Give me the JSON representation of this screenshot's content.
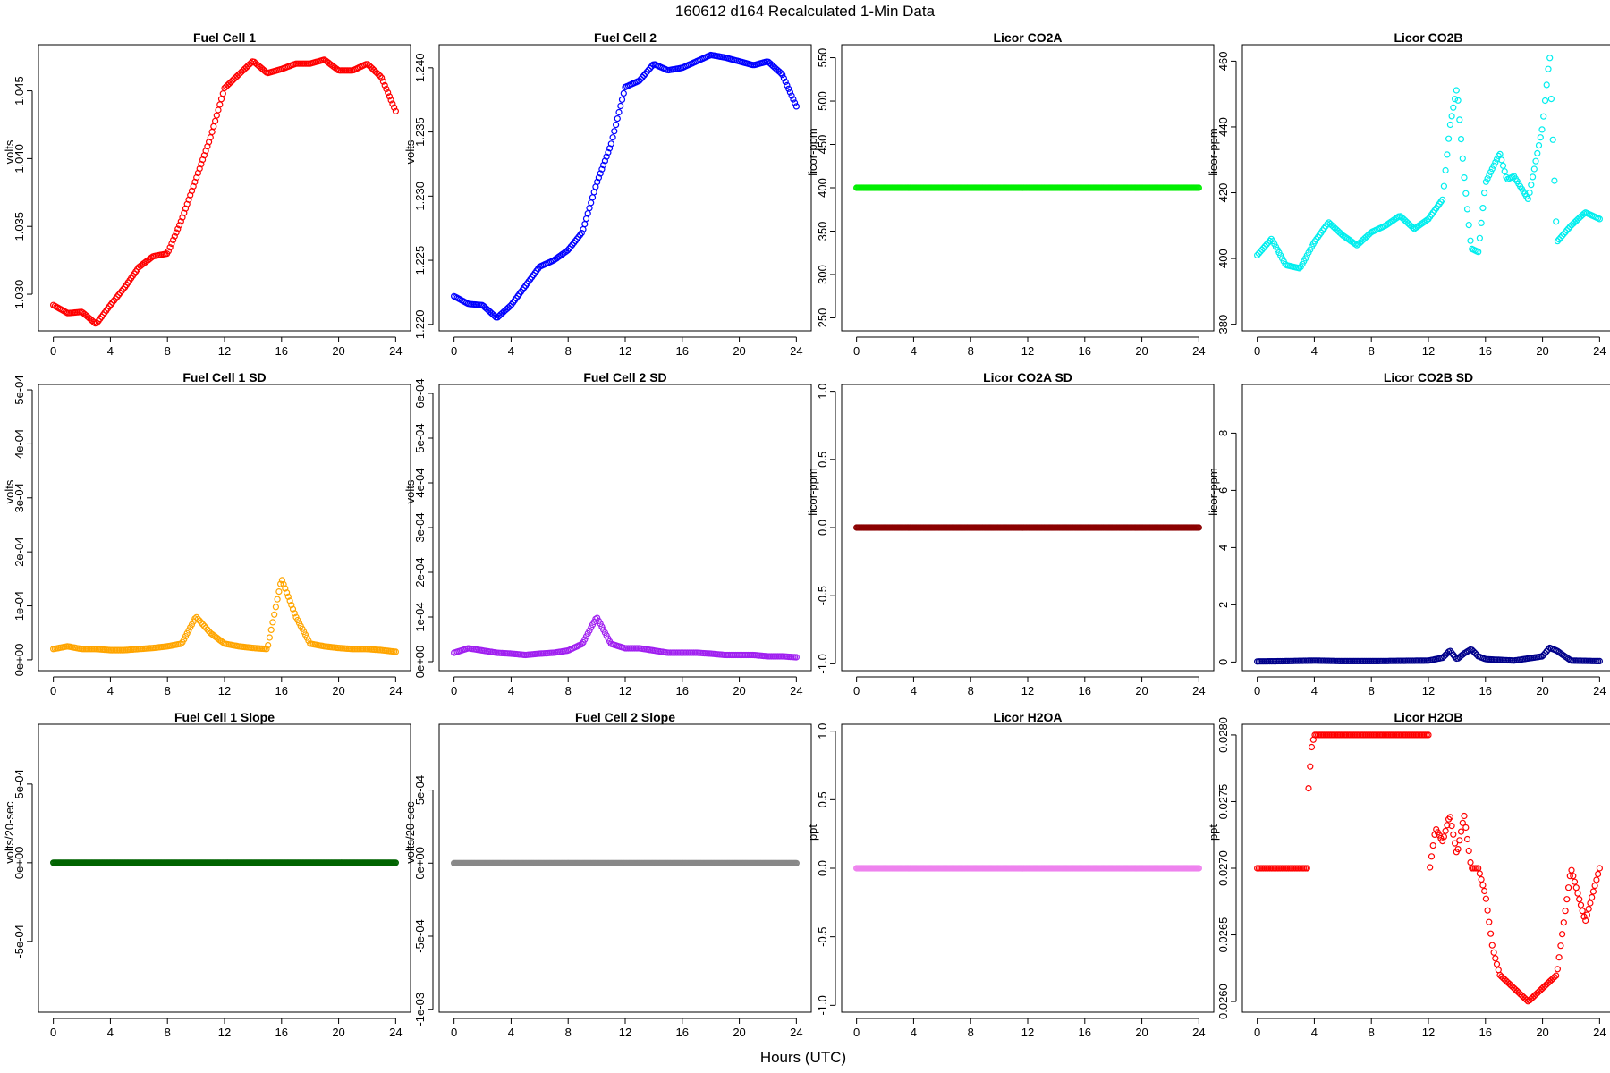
{
  "figure": {
    "title": "160612   d164   Recalculated 1-Min Data",
    "xlabel": "Hours (UTC)",
    "x_ticks": [
      "0",
      "4",
      "8",
      "12",
      "16",
      "20",
      "24"
    ]
  },
  "chart_data": [
    {
      "type": "scatter",
      "title": "Fuel Cell 1",
      "ylabel": "volts",
      "color": "#ff0000",
      "xlim": [
        0,
        24
      ],
      "ylim": [
        1.0273,
        1.0484
      ],
      "y_ticks": [
        1.03,
        1.035,
        1.04,
        1.045
      ],
      "y_tick_labels": [
        "1.030",
        "1.035",
        "1.040",
        "1.045"
      ],
      "x": [
        0,
        1,
        2,
        3,
        4,
        5,
        6,
        7,
        8,
        9,
        10,
        11,
        12,
        13,
        14,
        15,
        16,
        17,
        18,
        19,
        20,
        21,
        22,
        23,
        24
      ],
      "y": [
        1.0292,
        1.0286,
        1.0287,
        1.0278,
        1.0292,
        1.0305,
        1.032,
        1.0328,
        1.033,
        1.0355,
        1.0385,
        1.0415,
        1.0452,
        1.0462,
        1.0472,
        1.0463,
        1.0466,
        1.047,
        1.047,
        1.0473,
        1.0465,
        1.0465,
        1.047,
        1.046,
        1.0435
      ]
    },
    {
      "type": "scatter",
      "title": "Fuel Cell 2",
      "ylabel": "volts",
      "color": "#0000ff",
      "xlim": [
        0,
        24
      ],
      "ylim": [
        1.2195,
        1.2418
      ],
      "y_ticks": [
        1.22,
        1.225,
        1.23,
        1.235,
        1.24
      ],
      "y_tick_labels": [
        "1.220",
        "1.225",
        "1.230",
        "1.235",
        "1.240"
      ],
      "x": [
        0,
        1,
        2,
        3,
        4,
        5,
        6,
        7,
        8,
        9,
        10,
        11,
        12,
        13,
        14,
        15,
        16,
        17,
        18,
        19,
        20,
        21,
        22,
        23,
        24
      ],
      "y": [
        1.2222,
        1.2216,
        1.2215,
        1.2205,
        1.2215,
        1.223,
        1.2245,
        1.225,
        1.2258,
        1.2272,
        1.231,
        1.234,
        1.2385,
        1.239,
        1.2403,
        1.2398,
        1.24,
        1.2405,
        1.241,
        1.2408,
        1.2405,
        1.2402,
        1.2405,
        1.2395,
        1.237
      ]
    },
    {
      "type": "scatter",
      "title": "Licor CO2A",
      "ylabel": "licor-ppm",
      "color": "#00ee00",
      "xlim": [
        0,
        24
      ],
      "ylim": [
        235,
        565
      ],
      "y_ticks": [
        250,
        300,
        350,
        400,
        450,
        500,
        550
      ],
      "y_tick_labels": [
        "250",
        "300",
        "350",
        "400",
        "450",
        "500",
        "550"
      ],
      "x": [
        0,
        24
      ],
      "y": [
        400,
        400
      ],
      "dense": true
    },
    {
      "type": "scatter",
      "title": "Licor CO2B",
      "ylabel": "licor-ppm",
      "color": "#00eeee",
      "xlim": [
        0,
        24
      ],
      "ylim": [
        378,
        465
      ],
      "y_ticks": [
        380,
        400,
        420,
        440,
        460
      ],
      "y_tick_labels": [
        "380",
        "400",
        "420",
        "440",
        "460"
      ],
      "x": [
        0,
        1,
        2,
        3,
        4,
        5,
        6,
        7,
        8,
        9,
        10,
        11,
        12,
        13,
        13.5,
        14,
        14.5,
        15,
        15.5,
        16,
        17,
        17.5,
        18,
        19,
        20,
        20.5,
        21,
        22,
        23,
        24
      ],
      "y": [
        401,
        406,
        398,
        397,
        405,
        411,
        407,
        404,
        408,
        410,
        413,
        409,
        412,
        418,
        440,
        452,
        425,
        403,
        402,
        423,
        432,
        424,
        425,
        418,
        440,
        462,
        405,
        410,
        414,
        412
      ]
    },
    {
      "type": "scatter",
      "title": "Fuel Cell 1 SD",
      "ylabel": "volts",
      "color": "#ffa500",
      "xlim": [
        0,
        24
      ],
      "ylim": [
        -2e-05,
        0.00051
      ],
      "y_ticks": [
        0,
        0.0001,
        0.0002,
        0.0003,
        0.0004,
        0.0005
      ],
      "y_tick_labels": [
        "0e+00",
        "1e-04",
        "2e-04",
        "3e-04",
        "4e-04",
        "5e-04"
      ],
      "x": [
        0,
        1,
        2,
        3,
        4,
        5,
        6,
        7,
        8,
        9,
        10,
        11,
        12,
        13,
        14,
        15,
        16,
        17,
        18,
        19,
        20,
        21,
        22,
        23,
        24
      ],
      "y": [
        2e-05,
        2.5e-05,
        2e-05,
        2e-05,
        1.8e-05,
        1.8e-05,
        2e-05,
        2.2e-05,
        2.5e-05,
        3e-05,
        8e-05,
        5e-05,
        3e-05,
        2.5e-05,
        2.2e-05,
        2e-05,
        0.00015,
        8e-05,
        3e-05,
        2.5e-05,
        2.2e-05,
        2e-05,
        2e-05,
        1.8e-05,
        1.5e-05
      ]
    },
    {
      "type": "scatter",
      "title": "Fuel Cell 2 SD",
      "ylabel": "volts",
      "color": "#a020f0",
      "xlim": [
        0,
        24
      ],
      "ylim": [
        -2e-05,
        0.00062
      ],
      "y_ticks": [
        0,
        0.0001,
        0.0002,
        0.0003,
        0.0004,
        0.0005,
        0.0006
      ],
      "y_tick_labels": [
        "0e+00",
        "1e-04",
        "2e-04",
        "3e-04",
        "4e-04",
        "5e-04",
        "6e-04"
      ],
      "x": [
        0,
        1,
        2,
        3,
        4,
        5,
        6,
        7,
        8,
        9,
        10,
        11,
        12,
        13,
        14,
        15,
        16,
        17,
        18,
        19,
        20,
        21,
        22,
        23,
        24
      ],
      "y": [
        2e-05,
        3e-05,
        2.5e-05,
        2e-05,
        1.8e-05,
        1.5e-05,
        1.8e-05,
        2e-05,
        2.5e-05,
        4e-05,
        0.0001,
        4e-05,
        3e-05,
        3e-05,
        2.5e-05,
        2e-05,
        2e-05,
        2e-05,
        1.8e-05,
        1.5e-05,
        1.5e-05,
        1.5e-05,
        1.2e-05,
        1.2e-05,
        1e-05
      ]
    },
    {
      "type": "scatter",
      "title": "Licor CO2A SD",
      "ylabel": "licor-ppm",
      "color": "#8b0000",
      "xlim": [
        0,
        24
      ],
      "ylim": [
        -1.05,
        1.05
      ],
      "y_ticks": [
        -1,
        -0.5,
        0,
        0.5,
        1
      ],
      "y_tick_labels": [
        "-1.0",
        "-0.5",
        "0.0",
        "0.5",
        "1.0"
      ],
      "x": [
        0,
        24
      ],
      "y": [
        0,
        0
      ],
      "dense": true
    },
    {
      "type": "scatter",
      "title": "Licor CO2B SD",
      "ylabel": "licor-ppm",
      "color": "#00008b",
      "xlim": [
        0,
        24
      ],
      "ylim": [
        -0.3,
        9.7
      ],
      "y_ticks": [
        0,
        2,
        4,
        6,
        8
      ],
      "y_tick_labels": [
        "0",
        "2",
        "4",
        "6",
        "8"
      ],
      "x": [
        0,
        2,
        4,
        6,
        8,
        10,
        12,
        13,
        13.5,
        14,
        14.5,
        15,
        15.5,
        16,
        18,
        20,
        20.5,
        21,
        22,
        24
      ],
      "y": [
        0.02,
        0.03,
        0.05,
        0.03,
        0.03,
        0.04,
        0.05,
        0.15,
        0.4,
        0.1,
        0.3,
        0.45,
        0.2,
        0.1,
        0.05,
        0.2,
        0.5,
        0.4,
        0.05,
        0.03
      ]
    },
    {
      "type": "scatter",
      "title": "Fuel Cell 1 Slope",
      "ylabel": "volts/20-sec",
      "color": "#006400",
      "xlim": [
        0,
        24
      ],
      "ylim": [
        -0.00095,
        0.00088
      ],
      "y_ticks": [
        -0.0005,
        0,
        0.0005
      ],
      "y_tick_labels": [
        "-5e-04",
        "0e+00",
        "5e-04"
      ],
      "x": [
        0,
        24
      ],
      "y": [
        0,
        0
      ],
      "dense": true
    },
    {
      "type": "scatter",
      "title": "Fuel Cell 2 Slope",
      "ylabel": "volts/20-sec",
      "color": "#888888",
      "xlim": [
        0,
        24
      ],
      "ylim": [
        -0.00102,
        0.00095
      ],
      "y_ticks": [
        -0.001,
        -0.0005,
        0,
        0.0005
      ],
      "y_tick_labels": [
        "-1e-03",
        "-5e-04",
        "0e+00",
        "5e-04"
      ],
      "x": [
        0,
        24
      ],
      "y": [
        0,
        0
      ],
      "dense": true
    },
    {
      "type": "scatter",
      "title": "Licor H2OA",
      "ylabel": "ppt",
      "color": "#ee82ee",
      "xlim": [
        0,
        24
      ],
      "ylim": [
        -1.05,
        1.05
      ],
      "y_ticks": [
        -1,
        -0.5,
        0,
        0.5,
        1
      ],
      "y_tick_labels": [
        "-1.0",
        "-0.5",
        "0.0",
        "0.5",
        "1.0"
      ],
      "x": [
        0,
        24
      ],
      "y": [
        0,
        0
      ],
      "dense": true
    },
    {
      "type": "scatter",
      "title": "Licor H2OB",
      "ylabel": "ppt",
      "color": "#ff0000",
      "xlim": [
        0,
        24
      ],
      "ylim": [
        0.02592,
        0.02808
      ],
      "y_ticks": [
        0.026,
        0.0265,
        0.027,
        0.0275,
        0.028
      ],
      "y_tick_labels": [
        "0.0260",
        "0.0265",
        "0.0270",
        "0.0275",
        "0.0280"
      ],
      "x": [
        0,
        1,
        2,
        3,
        3.5,
        3.6,
        3.8,
        4,
        5,
        6,
        7,
        8,
        9,
        10,
        11,
        12,
        12.1,
        12.5,
        13,
        13.5,
        14,
        14.5,
        15,
        15.5,
        16,
        16.5,
        17,
        18,
        19,
        20,
        21,
        22,
        23,
        24
      ],
      "y": [
        0.027,
        0.027,
        0.027,
        0.027,
        0.027,
        0.0276,
        0.0279,
        0.028,
        0.028,
        0.028,
        0.028,
        0.028,
        0.028,
        0.028,
        0.028,
        0.028,
        0.027,
        0.0273,
        0.0272,
        0.0274,
        0.0271,
        0.0274,
        0.027,
        0.027,
        0.0268,
        0.0264,
        0.0262,
        0.0261,
        0.026,
        0.0261,
        0.0262,
        0.027,
        0.0266,
        0.027
      ]
    }
  ]
}
